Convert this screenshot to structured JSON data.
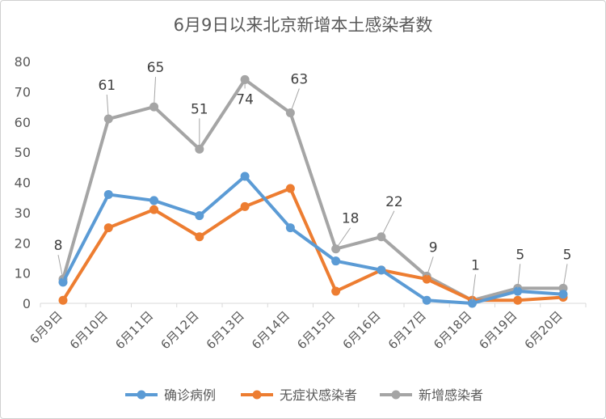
{
  "chart_data": {
    "type": "line",
    "title": "6月9日以来北京新增本土感染者数",
    "categories": [
      "6月9日",
      "6月10日",
      "6月11日",
      "6月12日",
      "6月13日",
      "6月14日",
      "6月15日",
      "6月16日",
      "6月17日",
      "6月18日",
      "6月19日",
      "6月20日"
    ],
    "ylim": [
      0,
      80
    ],
    "yticks": [
      0,
      10,
      20,
      30,
      40,
      50,
      60,
      70,
      80
    ],
    "grid": false,
    "legend_position": "bottom",
    "series": [
      {
        "name": "确诊病例",
        "color": "#5B9BD5",
        "values": [
          7,
          36,
          34,
          29,
          42,
          25,
          14,
          11,
          1,
          0,
          4,
          3
        ],
        "data_labels": false
      },
      {
        "name": "无症状感染者",
        "color": "#ED7D31",
        "values": [
          1,
          25,
          31,
          22,
          32,
          38,
          4,
          11,
          8,
          1,
          1,
          2
        ],
        "data_labels": false
      },
      {
        "name": "新增感染者",
        "color": "#A5A5A5",
        "values": [
          8,
          61,
          65,
          51,
          74,
          63,
          18,
          22,
          9,
          1,
          5,
          5
        ],
        "data_labels": true
      }
    ]
  }
}
